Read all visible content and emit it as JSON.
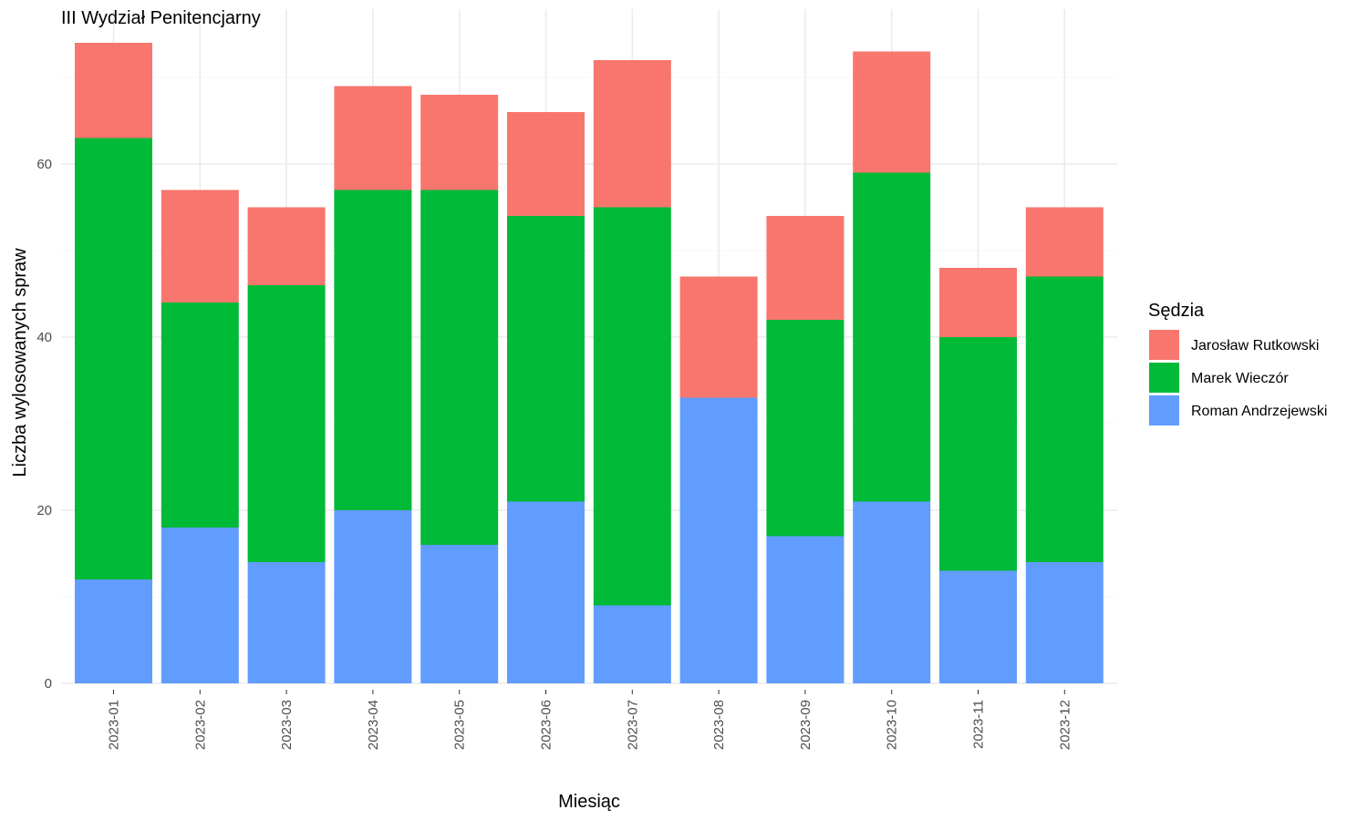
{
  "chart_data": {
    "type": "bar",
    "stacked": true,
    "title": "III Wydział Penitencjarny",
    "xlabel": "Miesiąc",
    "ylabel": "Liczba wylosowanych spraw",
    "ylim": [
      0,
      76
    ],
    "yticks": [
      0,
      20,
      40,
      60
    ],
    "grid": true,
    "legend": {
      "title": "Sędzia",
      "position": "right"
    },
    "categories": [
      "2023-01",
      "2023-02",
      "2023-03",
      "2023-04",
      "2023-05",
      "2023-06",
      "2023-07",
      "2023-08",
      "2023-09",
      "2023-10",
      "2023-11",
      "2023-12"
    ],
    "series": [
      {
        "name": "Roman Andrzejewski",
        "color": "#619CFF",
        "values": [
          12,
          18,
          14,
          20,
          16,
          21,
          9,
          33,
          17,
          21,
          13,
          14
        ]
      },
      {
        "name": "Marek Wieczór",
        "color": "#00BA38",
        "values": [
          51,
          26,
          32,
          37,
          41,
          33,
          46,
          0,
          25,
          38,
          27,
          33
        ]
      },
      {
        "name": "Jarosław Rutkowski",
        "color": "#F8766D",
        "values": [
          11,
          13,
          9,
          12,
          11,
          12,
          17,
          14,
          12,
          14,
          8,
          8
        ]
      }
    ],
    "legend_order": [
      "Jarosław Rutkowski",
      "Marek Wieczór",
      "Roman Andrzejewski"
    ]
  }
}
